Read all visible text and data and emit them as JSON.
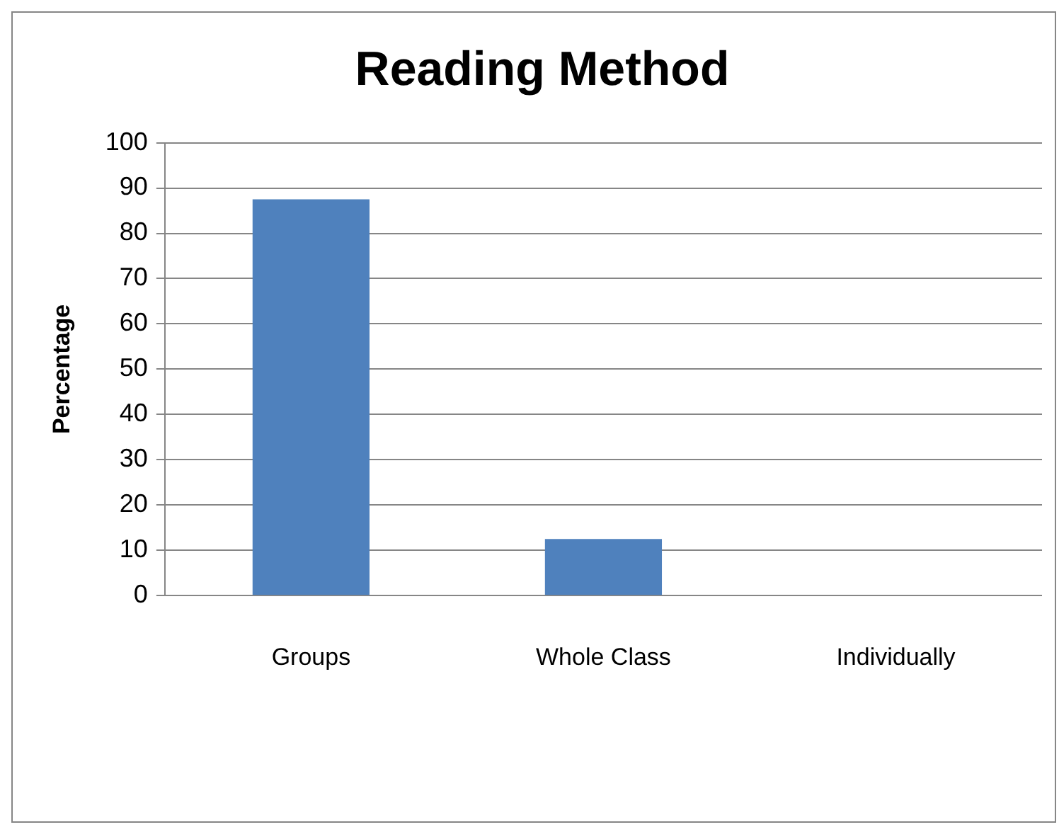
{
  "chart_data": {
    "type": "bar",
    "title": "Reading Method",
    "ylabel": "Percentage",
    "categories": [
      "Groups",
      "Whole Class",
      "Individually"
    ],
    "values": [
      87.5,
      12.5,
      0
    ],
    "color": "#4f81bd",
    "ylim": [
      0,
      100
    ],
    "yticks": [
      0,
      10,
      20,
      30,
      40,
      50,
      60,
      70,
      80,
      90,
      100
    ],
    "grid": "y",
    "legend": false
  }
}
